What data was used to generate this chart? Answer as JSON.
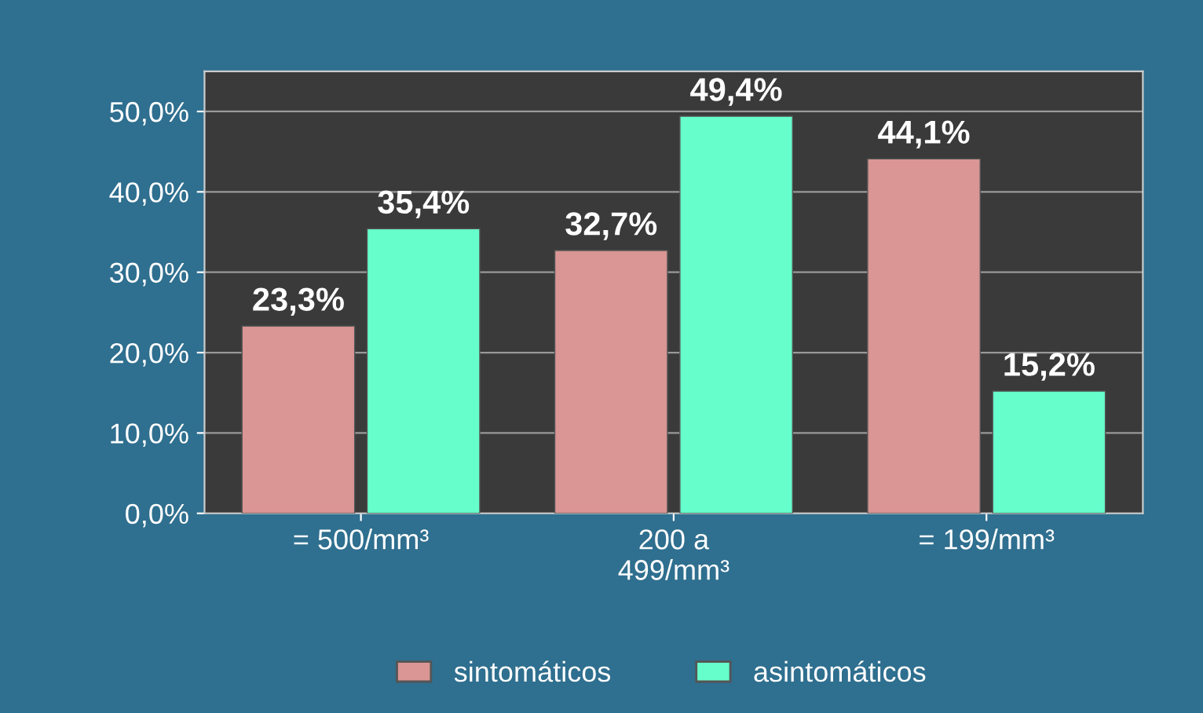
{
  "chart_data": {
    "type": "bar",
    "categories": [
      "= 500/mm³",
      "200 a\n499/mm³",
      "= 199/mm³"
    ],
    "series": [
      {
        "name": "sintomáticos",
        "color": "#d99694",
        "values": [
          23.3,
          32.7,
          44.1
        ],
        "value_labels": [
          "23,3%",
          "32,7%",
          "44,1%"
        ]
      },
      {
        "name": "asintomáticos",
        "color": "#66ffcc",
        "values": [
          35.4,
          49.4,
          15.2
        ],
        "value_labels": [
          "35,4%",
          "49,4%",
          "15,2%"
        ]
      }
    ],
    "ylim": [
      0,
      55
    ],
    "yticks": [
      {
        "value": 0,
        "label": "0,0%"
      },
      {
        "value": 10,
        "label": "10,0%"
      },
      {
        "value": 20,
        "label": "20,0%"
      },
      {
        "value": 30,
        "label": "30,0%"
      },
      {
        "value": 40,
        "label": "40,0%"
      },
      {
        "value": 50,
        "label": "50,0%"
      }
    ],
    "grid": "y",
    "legend": "bottom"
  }
}
